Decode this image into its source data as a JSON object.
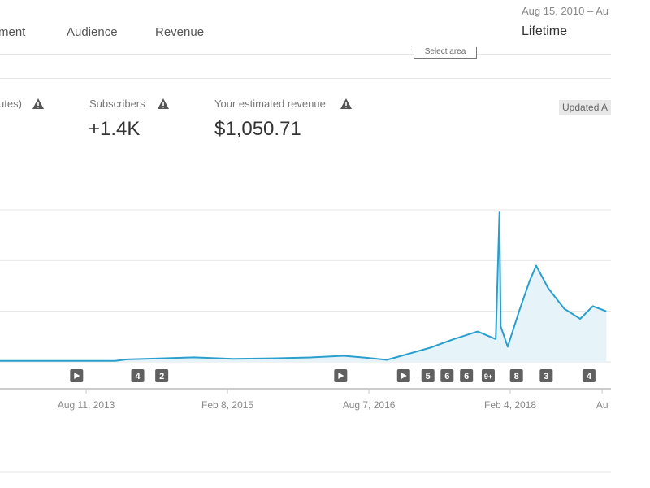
{
  "header": {
    "tabs": [
      "ment",
      "Audience",
      "Revenue"
    ],
    "date_range": "Aug 15, 2010 – Au",
    "period": "Lifetime",
    "select_button": "Select area"
  },
  "metrics": [
    {
      "label": "utes)"
    },
    {
      "label": "Subscribers",
      "value": "+1.4K"
    },
    {
      "label": "Your estimated revenue",
      "value": "$1,050.71"
    }
  ],
  "updated": "Updated A",
  "chart_data": {
    "type": "line",
    "x": [
      "2012-09-12",
      "2013-06-01",
      "2013-12-01",
      "2014-01-15",
      "2014-06-01",
      "2014-10-01",
      "2015-03-01",
      "2015-08-01",
      "2016-01-01",
      "2016-05-01",
      "2016-08-01",
      "2016-10-15",
      "2017-01-01",
      "2017-04-01",
      "2017-07-01",
      "2017-10-01",
      "2017-12-10",
      "2017-12-24",
      "2017-12-29",
      "2018-01-25",
      "2018-03-10",
      "2018-04-20",
      "2018-05-15",
      "2018-07-01",
      "2018-09-01",
      "2018-11-01",
      "2018-12-20",
      "2019-02-10"
    ],
    "series": [
      {
        "color": "#2a9fcd",
        "area_color": "#e6f3f9",
        "values": [
          0.02,
          0.02,
          0.02,
          0.05,
          0.07,
          0.09,
          0.06,
          0.07,
          0.09,
          0.12,
          0.08,
          0.04,
          0.15,
          0.28,
          0.45,
          0.6,
          0.45,
          2.95,
          0.7,
          0.3,
          1.0,
          1.6,
          1.9,
          1.45,
          1.05,
          0.85,
          1.1,
          1.0
        ]
      }
    ],
    "xlim": [
      "2012-09-12",
      "2019-02-28"
    ],
    "xticks": [
      {
        "value": "2013-08-11",
        "label": "Aug 11, 2013"
      },
      {
        "value": "2015-02-08",
        "label": "Feb 8, 2015"
      },
      {
        "value": "2016-08-07",
        "label": "Aug 7, 2016"
      },
      {
        "value": "2018-02-04",
        "label": "Feb 4, 2018"
      },
      {
        "value": "2019-01-25",
        "label": "Au"
      }
    ],
    "ylim": [
      0,
      3
    ],
    "yticks": [
      0,
      1,
      2,
      3
    ],
    "grid": true,
    "markers": [
      {
        "date": "2013-07-05",
        "label": null
      },
      {
        "date": "2014-02-26",
        "label": "4"
      },
      {
        "date": "2014-05-30",
        "label": "2"
      },
      {
        "date": "2016-04-20",
        "label": null
      },
      {
        "date": "2016-12-19",
        "label": null
      },
      {
        "date": "2017-03-23",
        "label": "5"
      },
      {
        "date": "2017-06-05",
        "label": "6"
      },
      {
        "date": "2017-08-19",
        "label": "6"
      },
      {
        "date": "2017-11-11",
        "label": "9+"
      },
      {
        "date": "2018-02-28",
        "label": "8"
      },
      {
        "date": "2018-06-23",
        "label": "3"
      },
      {
        "date": "2018-12-05",
        "label": "4"
      }
    ]
  }
}
